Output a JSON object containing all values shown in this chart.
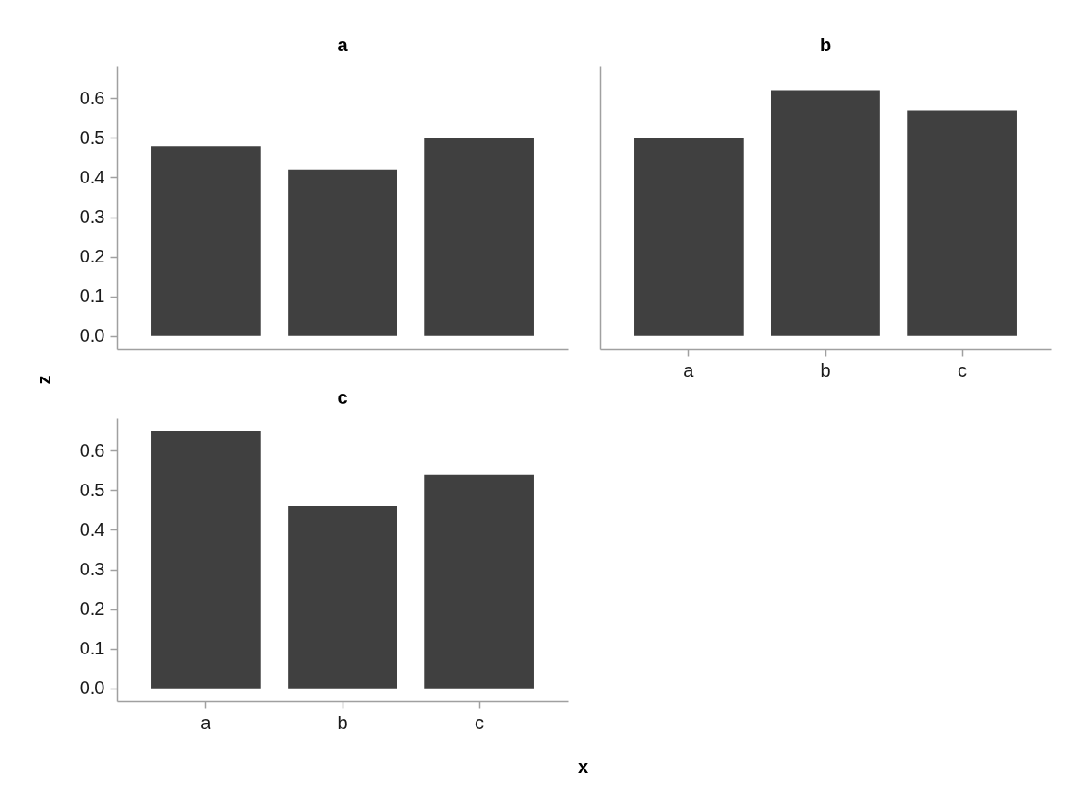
{
  "chart_data": [
    {
      "type": "bar",
      "title": "a",
      "ylabel": "z",
      "categories": [
        null,
        null,
        null
      ],
      "values": [
        0.48,
        0.42,
        0.5
      ],
      "color": "#404040",
      "ylim": [
        -0.0325,
        0.6825
      ],
      "yticks": [
        {
          "value": 0,
          "label": "0.0"
        },
        0.1,
        0.2,
        0.3,
        0.4,
        0.5,
        0.6
      ],
      "tick_labels": "y"
    },
    {
      "type": "bar",
      "title": "b",
      "categories": [
        "a",
        "b",
        "c"
      ],
      "values": [
        0.5,
        0.62,
        0.57
      ],
      "color": "#404040",
      "ylim": [
        -0.0325,
        0.6825
      ],
      "tick_labels": "x"
    },
    {
      "type": "bar",
      "title": "c",
      "xlabel": "x",
      "categories": [
        "a",
        "b",
        "c"
      ],
      "values": [
        0.65,
        0.46,
        0.54
      ],
      "color": "#404040",
      "ylim": [
        -0.0325,
        0.6825
      ],
      "yticks": [
        {
          "value": 0,
          "label": "0.0"
        },
        0.1,
        0.2,
        0.3,
        0.4,
        0.5,
        0.6
      ]
    }
  ]
}
